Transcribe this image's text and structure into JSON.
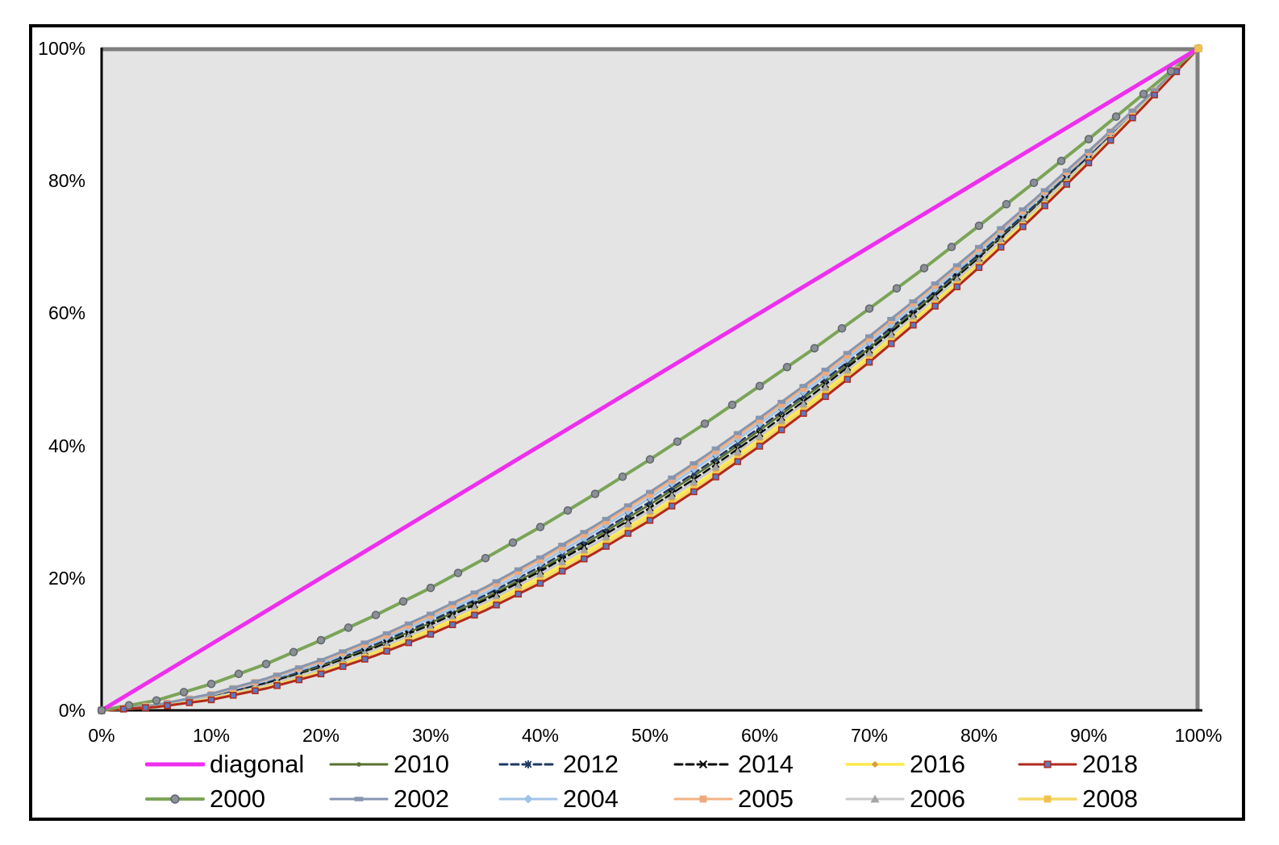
{
  "chart_data": {
    "type": "line",
    "title": "",
    "xlabel": "",
    "ylabel": "",
    "xlim": [
      0,
      100
    ],
    "ylim": [
      0,
      100
    ],
    "grid": false,
    "plot_bg": "#E4E4E4",
    "plot_shadow_color": "#7F7F7F",
    "axis_color": "#000000",
    "legend_position": "bottom",
    "x_tick_labels": [
      "0%",
      "10%",
      "20%",
      "30%",
      "40%",
      "50%",
      "60%",
      "70%",
      "80%",
      "90%",
      "100%"
    ],
    "x_tick_values": [
      0,
      10,
      20,
      30,
      40,
      50,
      60,
      70,
      80,
      90,
      100
    ],
    "y_tick_labels": [
      "0%",
      "20%",
      "40%",
      "60%",
      "80%",
      "100%"
    ],
    "y_tick_values": [
      0,
      20,
      40,
      60,
      80,
      100
    ],
    "x": [
      0,
      5,
      10,
      15,
      20,
      25,
      30,
      35,
      40,
      45,
      50,
      55,
      60,
      65,
      70,
      75,
      80,
      85,
      90,
      95,
      100
    ],
    "series": [
      {
        "name": "diagonal",
        "color": "#EE2FEE",
        "width": 5,
        "dash": "",
        "marker": "none",
        "marker_color": "#EE2FEE",
        "values": [
          0,
          5,
          10,
          15,
          20,
          25,
          30,
          35,
          40,
          45,
          50,
          55,
          60,
          65,
          70,
          75,
          80,
          85,
          90,
          95,
          100
        ]
      },
      {
        "name": "2000",
        "color": "#7BA457",
        "width": 4,
        "dash": "",
        "marker": "circle",
        "marker_color": "#8B8F96",
        "marker_stroke": "#60646C",
        "values": [
          0,
          1.5,
          4,
          7,
          10.6,
          14.4,
          18.5,
          23,
          27.7,
          32.7,
          37.9,
          43.3,
          49,
          54.7,
          60.7,
          66.8,
          73.2,
          79.7,
          86.3,
          93.1,
          100
        ]
      },
      {
        "name": "2002",
        "color": "#8795AE",
        "width": 3,
        "dash": "",
        "marker": "rect",
        "marker_color": "#8795AE",
        "values": [
          0,
          0.8,
          2.5,
          4.8,
          7.6,
          10.9,
          14.6,
          18.6,
          23.1,
          27.9,
          33,
          38.4,
          44.2,
          50.2,
          56.5,
          63.1,
          70,
          77.1,
          84.5,
          92.1,
          100
        ]
      },
      {
        "name": "2004",
        "color": "#A3C5E8",
        "width": 3,
        "dash": "",
        "marker": "diamond",
        "marker_color": "#9CC2E5",
        "values": [
          0,
          0.7,
          2.3,
          4.5,
          7.1,
          10.3,
          13.9,
          17.8,
          22.2,
          27,
          32.1,
          37.5,
          43.3,
          49.3,
          55.6,
          62.3,
          69.3,
          76.6,
          84.1,
          91.9,
          100
        ]
      },
      {
        "name": "2005",
        "color": "#F3B183",
        "width": 3,
        "dash": "",
        "marker": "square",
        "marker_color": "#EDA97E",
        "values": [
          0,
          0.8,
          2.4,
          4.7,
          7.4,
          10.6,
          14.3,
          18.3,
          22.7,
          27.5,
          32.6,
          38,
          43.8,
          49.8,
          56.1,
          62.8,
          69.7,
          76.9,
          84.3,
          92,
          100
        ]
      },
      {
        "name": "2006",
        "color": "#C9C9C9",
        "width": 3,
        "dash": "",
        "marker": "triangle",
        "marker_color": "#A6A6A6",
        "values": [
          0,
          0.6,
          1.9,
          3.8,
          6.2,
          9.2,
          12.6,
          16.3,
          20.6,
          25.2,
          30.2,
          35.6,
          41.4,
          47.5,
          54,
          60.8,
          68,
          75.5,
          83.3,
          91.5,
          100
        ]
      },
      {
        "name": "2008",
        "color": "#F6D76A",
        "width": 3.5,
        "dash": "",
        "marker": "square",
        "marker_color": "#EFC34F",
        "values": [
          0,
          0.5,
          1.7,
          3.5,
          5.7,
          8.6,
          11.8,
          15.5,
          19.6,
          24.2,
          29.1,
          34.5,
          40.3,
          46.5,
          53,
          60,
          67.2,
          74.8,
          82.9,
          91.3,
          100
        ]
      },
      {
        "name": "2010",
        "color": "#5A7231",
        "width": 2.5,
        "dash": "",
        "marker": "dot",
        "marker_color": "#5A7231",
        "values": [
          0,
          0.7,
          2.1,
          4.1,
          6.7,
          9.7,
          13.2,
          17,
          21.3,
          26.1,
          31.1,
          36.5,
          42.3,
          48.4,
          54.7,
          61.5,
          68.6,
          76,
          83.7,
          91.7,
          100
        ]
      },
      {
        "name": "2012",
        "color": "#1F3864",
        "width": 2.5,
        "dash": "9 5",
        "marker": "star",
        "marker_color": "#1F3864",
        "values": [
          0,
          0.7,
          2.2,
          4.3,
          6.9,
          10,
          13.5,
          17.4,
          21.7,
          26.5,
          31.5,
          36.9,
          42.7,
          48.8,
          55.1,
          61.9,
          68.9,
          76.2,
          83.9,
          91.8,
          100
        ]
      },
      {
        "name": "2014",
        "color": "#0A0A0A",
        "width": 2.5,
        "dash": "9 5",
        "marker": "x",
        "marker_color": "#0A0A0A",
        "values": [
          0,
          0.6,
          2,
          4,
          6.4,
          9.5,
          12.9,
          16.7,
          21,
          25.7,
          30.6,
          36,
          41.8,
          47.9,
          54.4,
          61.2,
          68.3,
          75.7,
          83.5,
          91.6,
          100
        ]
      },
      {
        "name": "2016",
        "color": "#FFE94D",
        "width": 3.5,
        "dash": "",
        "marker": "diamond-small",
        "marker_color": "#D89C3C",
        "values": [
          0,
          0.6,
          1.8,
          3.6,
          6,
          8.9,
          12.2,
          15.9,
          20.1,
          24.7,
          29.6,
          35,
          40.9,
          47,
          53.5,
          60.4,
          67.6,
          75.1,
          83.1,
          91.4,
          100
        ]
      },
      {
        "name": "2018",
        "color": "#B02A1D",
        "width": 3,
        "dash": "",
        "marker": "square-blue",
        "marker_color": "#5B79C2",
        "values": [
          0,
          0.5,
          1.6,
          3.3,
          5.5,
          8.3,
          11.5,
          15.1,
          19.2,
          23.8,
          28.7,
          34.1,
          39.9,
          46.1,
          52.6,
          59.6,
          66.9,
          74.6,
          82.7,
          91.2,
          100
        ]
      }
    ],
    "line_order": [
      "2010",
      "2012",
      "2014",
      "2016",
      "2006",
      "2004",
      "2005",
      "2002",
      "2008",
      "2018",
      "2000",
      "diagonal"
    ],
    "marker_order": [
      "2012",
      "2014",
      "2016",
      "2006",
      "2004",
      "2005",
      "2002",
      "2008",
      "2018",
      "2000"
    ],
    "corner_marker": "2008",
    "legend_rows": [
      [
        "diagonal",
        "2010",
        "2012",
        "2014",
        "2016",
        "2018"
      ],
      [
        "2000",
        "2002",
        "2004",
        "2005",
        "2006",
        "2008"
      ]
    ]
  }
}
